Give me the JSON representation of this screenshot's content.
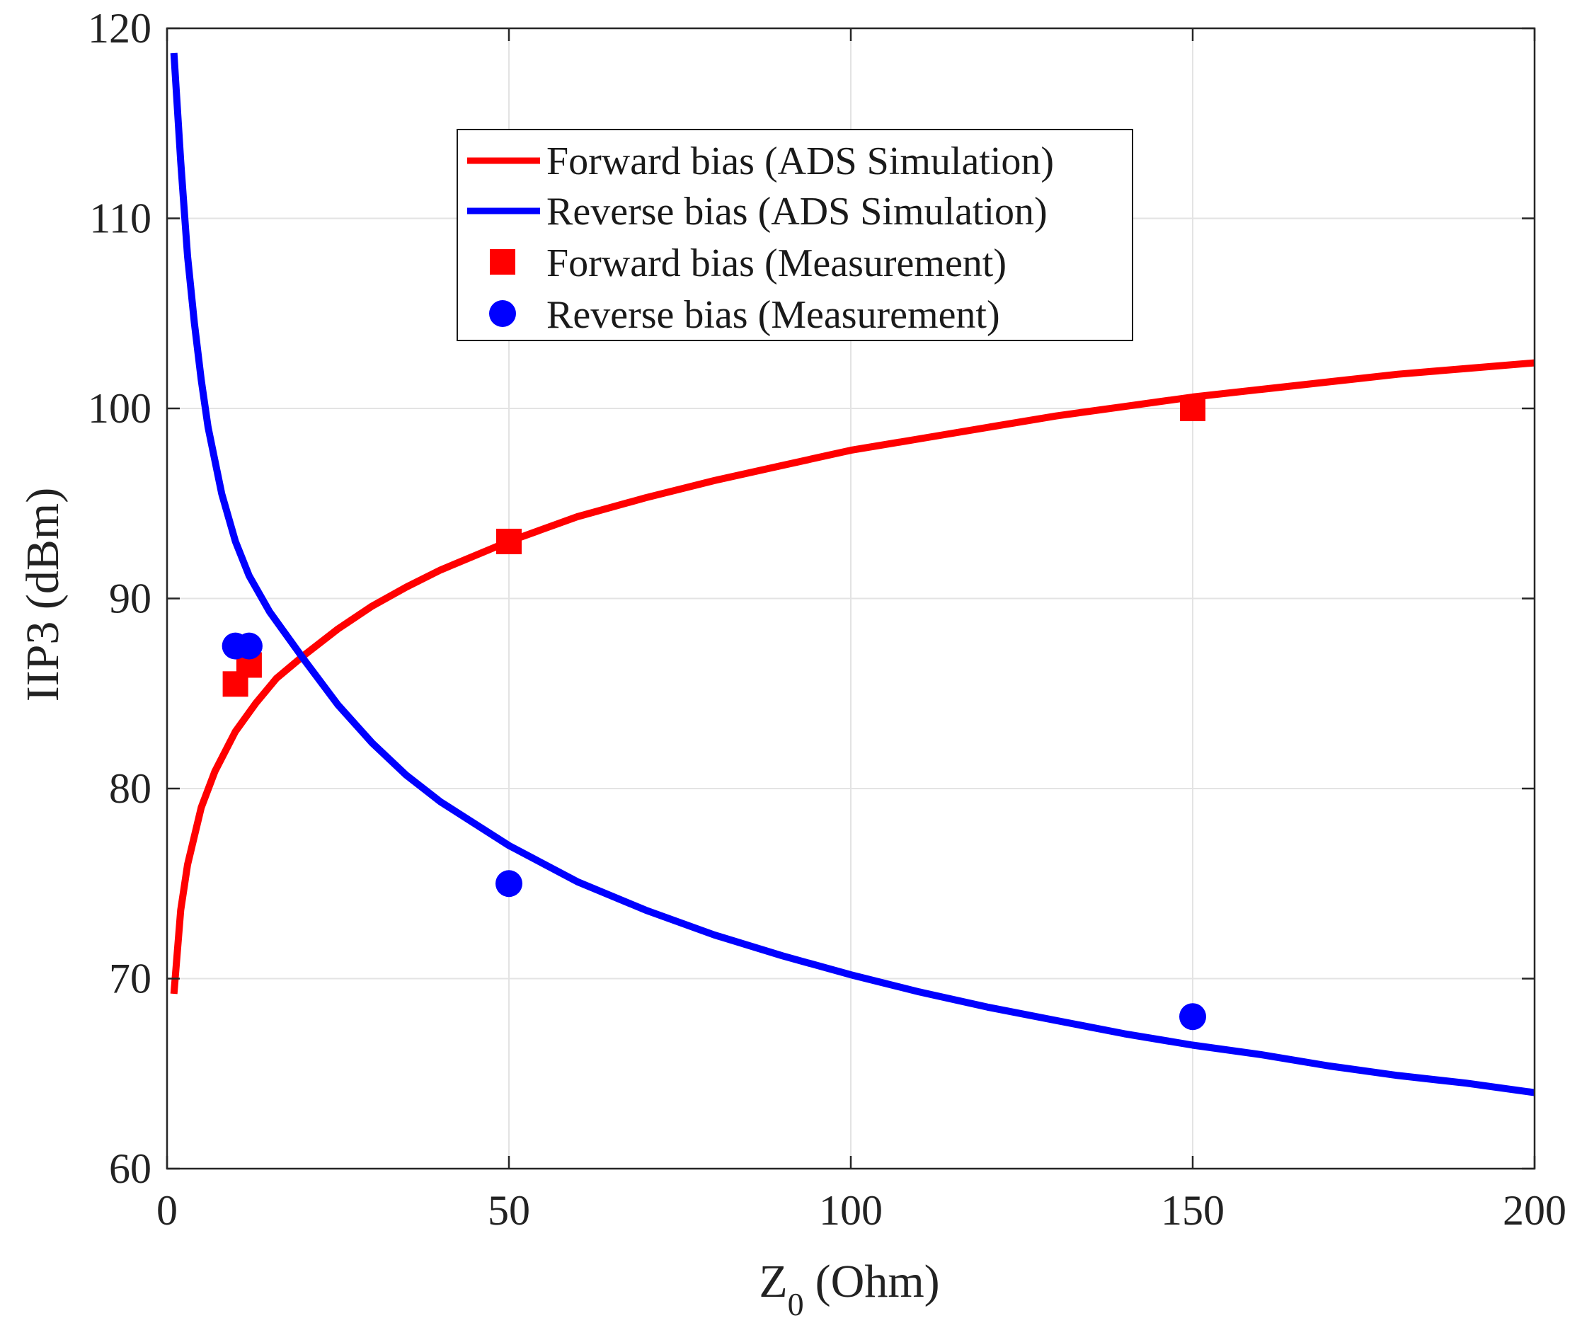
{
  "chart_data": {
    "type": "line",
    "title": "",
    "xlabel": "Z",
    "xlabel_subscript": "0",
    "xlabel_unit": "(Ohm)",
    "ylabel": "IIP3 (dBm)",
    "xlim": [
      0,
      200
    ],
    "ylim": [
      60,
      120
    ],
    "xticks": [
      0,
      50,
      100,
      150,
      200
    ],
    "yticks": [
      60,
      70,
      80,
      90,
      100,
      110,
      120
    ],
    "grid": true,
    "legend_position": "top-center",
    "series": [
      {
        "name": "Forward bias (ADS Simulation)",
        "kind": "line",
        "color": "#ff0000",
        "x": [
          1,
          2,
          3,
          5,
          7,
          10,
          13,
          16,
          20,
          25,
          30,
          35,
          40,
          50,
          60,
          70,
          80,
          90,
          100,
          110,
          120,
          130,
          140,
          150,
          160,
          170,
          180,
          190,
          200
        ],
        "y": [
          69.2,
          73.6,
          76.0,
          79.0,
          80.9,
          83.0,
          84.5,
          85.8,
          87.0,
          88.4,
          89.6,
          90.6,
          91.5,
          93.0,
          94.3,
          95.3,
          96.2,
          97.0,
          97.8,
          98.4,
          99.0,
          99.6,
          100.1,
          100.6,
          101.0,
          101.4,
          101.8,
          102.1,
          102.4
        ]
      },
      {
        "name": "Reverse bias (ADS Simulation)",
        "kind": "line",
        "color": "#0000ff",
        "x": [
          1,
          2,
          3,
          4,
          5,
          6,
          8,
          10,
          12,
          15,
          18,
          20,
          25,
          30,
          35,
          40,
          50,
          60,
          70,
          80,
          90,
          100,
          110,
          120,
          130,
          140,
          150,
          160,
          170,
          180,
          190,
          200
        ],
        "y": [
          118.7,
          113.0,
          108.0,
          104.5,
          101.5,
          99.0,
          95.5,
          93.0,
          91.2,
          89.3,
          87.8,
          86.8,
          84.4,
          82.4,
          80.7,
          79.3,
          77.0,
          75.1,
          73.6,
          72.3,
          71.2,
          70.2,
          69.3,
          68.5,
          67.8,
          67.1,
          66.5,
          66.0,
          65.4,
          64.9,
          64.5,
          64.0
        ]
      },
      {
        "name": "Forward bias (Measurement)",
        "kind": "scatter",
        "marker": "square",
        "color": "#ff0000",
        "x": [
          10,
          12,
          50,
          150
        ],
        "y": [
          85.5,
          86.5,
          93.0,
          100.0
        ]
      },
      {
        "name": "Reverse bias (Measurement)",
        "kind": "scatter",
        "marker": "circle",
        "color": "#0000ff",
        "x": [
          10,
          12,
          50,
          150
        ],
        "y": [
          87.5,
          87.5,
          75.0,
          68.0
        ]
      }
    ]
  },
  "legend": {
    "entries": [
      "Forward bias (ADS Simulation)",
      "Reverse bias (ADS Simulation)",
      "Forward bias (Measurement)",
      "Reverse bias (Measurement)"
    ]
  }
}
